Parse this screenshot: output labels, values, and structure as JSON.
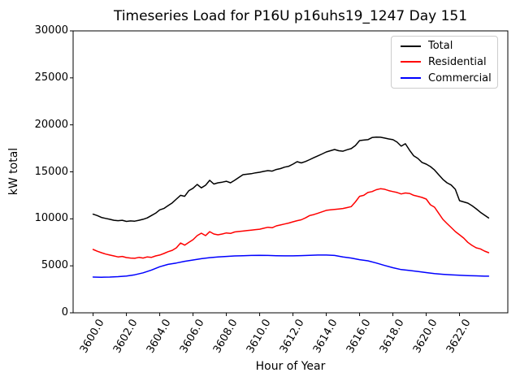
{
  "chart_data": {
    "type": "line",
    "title": "Timeseries Load for P16U p16uhs19_1247  Day 151",
    "xlabel": "Hour of Year",
    "ylabel": "kW total",
    "grid": false,
    "legend_position": "upper right",
    "x_tick_rotation_deg": 60,
    "xlim": [
      3598.8,
      3624.9
    ],
    "ylim": [
      0,
      30000
    ],
    "xticks": {
      "values": [
        3600,
        3602,
        3604,
        3606,
        3608,
        3610,
        3612,
        3614,
        3616,
        3618,
        3620,
        3622
      ],
      "labels": [
        "3600.0",
        "3602.0",
        "3604.0",
        "3606.0",
        "3608.0",
        "3610.0",
        "3612.0",
        "3614.0",
        "3616.0",
        "3618.0",
        "3620.0",
        "3622.0"
      ]
    },
    "yticks": {
      "values": [
        0,
        5000,
        10000,
        15000,
        20000,
        25000,
        30000
      ],
      "labels": [
        "0",
        "5000",
        "10000",
        "15000",
        "20000",
        "25000",
        "30000"
      ]
    },
    "series": [
      {
        "name": "Total",
        "color": "#000000",
        "points": [
          [
            3600,
            10500
          ],
          [
            3600.25,
            10350
          ],
          [
            3600.5,
            10150
          ],
          [
            3600.75,
            10050
          ],
          [
            3601,
            9950
          ],
          [
            3601.25,
            9850
          ],
          [
            3601.5,
            9800
          ],
          [
            3601.75,
            9850
          ],
          [
            3602,
            9730
          ],
          [
            3602.25,
            9780
          ],
          [
            3602.5,
            9750
          ],
          [
            3602.75,
            9850
          ],
          [
            3603,
            9950
          ],
          [
            3603.25,
            10100
          ],
          [
            3603.5,
            10350
          ],
          [
            3603.75,
            10600
          ],
          [
            3604,
            10950
          ],
          [
            3604.25,
            11100
          ],
          [
            3604.5,
            11400
          ],
          [
            3604.75,
            11700
          ],
          [
            3605,
            12100
          ],
          [
            3605.25,
            12500
          ],
          [
            3605.5,
            12400
          ],
          [
            3605.75,
            13000
          ],
          [
            3606,
            13250
          ],
          [
            3606.25,
            13660
          ],
          [
            3606.5,
            13300
          ],
          [
            3606.75,
            13570
          ],
          [
            3607,
            14100
          ],
          [
            3607.25,
            13700
          ],
          [
            3607.5,
            13830
          ],
          [
            3607.75,
            13900
          ],
          [
            3608,
            14000
          ],
          [
            3608.25,
            13830
          ],
          [
            3608.5,
            14100
          ],
          [
            3608.75,
            14400
          ],
          [
            3609,
            14700
          ],
          [
            3609.25,
            14750
          ],
          [
            3609.5,
            14800
          ],
          [
            3609.75,
            14900
          ],
          [
            3610,
            14960
          ],
          [
            3610.25,
            15050
          ],
          [
            3610.5,
            15130
          ],
          [
            3610.75,
            15080
          ],
          [
            3611,
            15250
          ],
          [
            3611.25,
            15350
          ],
          [
            3611.5,
            15500
          ],
          [
            3611.75,
            15600
          ],
          [
            3612,
            15820
          ],
          [
            3612.25,
            16080
          ],
          [
            3612.5,
            15950
          ],
          [
            3612.75,
            16100
          ],
          [
            3613,
            16300
          ],
          [
            3613.25,
            16500
          ],
          [
            3613.5,
            16700
          ],
          [
            3613.75,
            16900
          ],
          [
            3614,
            17120
          ],
          [
            3614.25,
            17250
          ],
          [
            3614.5,
            17380
          ],
          [
            3614.75,
            17250
          ],
          [
            3615,
            17200
          ],
          [
            3615.25,
            17350
          ],
          [
            3615.5,
            17470
          ],
          [
            3615.75,
            17800
          ],
          [
            3616,
            18330
          ],
          [
            3616.25,
            18380
          ],
          [
            3616.5,
            18420
          ],
          [
            3616.75,
            18650
          ],
          [
            3617,
            18700
          ],
          [
            3617.25,
            18680
          ],
          [
            3617.5,
            18600
          ],
          [
            3617.75,
            18500
          ],
          [
            3618,
            18420
          ],
          [
            3618.25,
            18160
          ],
          [
            3618.5,
            17730
          ],
          [
            3618.75,
            17990
          ],
          [
            3619,
            17300
          ],
          [
            3619.25,
            16700
          ],
          [
            3619.5,
            16425
          ],
          [
            3619.75,
            16000
          ],
          [
            3620,
            15820
          ],
          [
            3620.25,
            15560
          ],
          [
            3620.5,
            15200
          ],
          [
            3620.75,
            14700
          ],
          [
            3621,
            14200
          ],
          [
            3621.25,
            13830
          ],
          [
            3621.5,
            13600
          ],
          [
            3621.75,
            13140
          ],
          [
            3622,
            11930
          ],
          [
            3622.25,
            11800
          ],
          [
            3622.5,
            11670
          ],
          [
            3622.75,
            11400
          ],
          [
            3623,
            11070
          ],
          [
            3623.25,
            10700
          ],
          [
            3623.5,
            10400
          ],
          [
            3623.75,
            10100
          ]
        ]
      },
      {
        "name": "Residential",
        "color": "#ff0000",
        "points": [
          [
            3600,
            6740
          ],
          [
            3600.25,
            6550
          ],
          [
            3600.5,
            6400
          ],
          [
            3600.75,
            6250
          ],
          [
            3601,
            6150
          ],
          [
            3601.25,
            6050
          ],
          [
            3601.5,
            5950
          ],
          [
            3601.75,
            6000
          ],
          [
            3602,
            5880
          ],
          [
            3602.25,
            5830
          ],
          [
            3602.5,
            5800
          ],
          [
            3602.75,
            5900
          ],
          [
            3603,
            5830
          ],
          [
            3603.25,
            5950
          ],
          [
            3603.5,
            5900
          ],
          [
            3603.75,
            6050
          ],
          [
            3604,
            6150
          ],
          [
            3604.25,
            6310
          ],
          [
            3604.5,
            6500
          ],
          [
            3604.75,
            6650
          ],
          [
            3605,
            6920
          ],
          [
            3605.25,
            7430
          ],
          [
            3605.5,
            7200
          ],
          [
            3605.75,
            7500
          ],
          [
            3606,
            7780
          ],
          [
            3606.25,
            8210
          ],
          [
            3606.5,
            8470
          ],
          [
            3606.75,
            8210
          ],
          [
            3607,
            8640
          ],
          [
            3607.25,
            8385
          ],
          [
            3607.5,
            8300
          ],
          [
            3607.75,
            8385
          ],
          [
            3608,
            8500
          ],
          [
            3608.25,
            8450
          ],
          [
            3608.5,
            8600
          ],
          [
            3608.75,
            8650
          ],
          [
            3609,
            8700
          ],
          [
            3609.25,
            8750
          ],
          [
            3609.5,
            8800
          ],
          [
            3609.75,
            8850
          ],
          [
            3610,
            8900
          ],
          [
            3610.25,
            9000
          ],
          [
            3610.5,
            9100
          ],
          [
            3610.75,
            9050
          ],
          [
            3611,
            9250
          ],
          [
            3611.25,
            9350
          ],
          [
            3611.5,
            9450
          ],
          [
            3611.75,
            9550
          ],
          [
            3612,
            9680
          ],
          [
            3612.25,
            9800
          ],
          [
            3612.5,
            9900
          ],
          [
            3612.75,
            10100
          ],
          [
            3613,
            10350
          ],
          [
            3613.25,
            10450
          ],
          [
            3613.5,
            10600
          ],
          [
            3613.75,
            10750
          ],
          [
            3614,
            10900
          ],
          [
            3614.25,
            10950
          ],
          [
            3614.5,
            11000
          ],
          [
            3614.75,
            11050
          ],
          [
            3615,
            11100
          ],
          [
            3615.25,
            11200
          ],
          [
            3615.5,
            11300
          ],
          [
            3615.75,
            11800
          ],
          [
            3616,
            12400
          ],
          [
            3616.25,
            12500
          ],
          [
            3616.5,
            12800
          ],
          [
            3616.75,
            12900
          ],
          [
            3617,
            13100
          ],
          [
            3617.25,
            13200
          ],
          [
            3617.5,
            13150
          ],
          [
            3617.75,
            13000
          ],
          [
            3618,
            12900
          ],
          [
            3618.25,
            12800
          ],
          [
            3618.5,
            12650
          ],
          [
            3618.75,
            12750
          ],
          [
            3619,
            12700
          ],
          [
            3619.25,
            12500
          ],
          [
            3619.5,
            12400
          ],
          [
            3619.75,
            12280
          ],
          [
            3620,
            12100
          ],
          [
            3620.25,
            11500
          ],
          [
            3620.5,
            11240
          ],
          [
            3620.75,
            10600
          ],
          [
            3621,
            9940
          ],
          [
            3621.25,
            9500
          ],
          [
            3621.5,
            9080
          ],
          [
            3621.75,
            8645
          ],
          [
            3622,
            8300
          ],
          [
            3622.25,
            7950
          ],
          [
            3622.5,
            7500
          ],
          [
            3622.75,
            7175
          ],
          [
            3623,
            6915
          ],
          [
            3623.25,
            6800
          ],
          [
            3623.5,
            6570
          ],
          [
            3623.75,
            6400
          ]
        ]
      },
      {
        "name": "Commercial",
        "color": "#0000ff",
        "points": [
          [
            3600,
            3800
          ],
          [
            3600.5,
            3790
          ],
          [
            3601,
            3800
          ],
          [
            3601.5,
            3850
          ],
          [
            3602,
            3920
          ],
          [
            3602.5,
            4050
          ],
          [
            3603,
            4250
          ],
          [
            3603.5,
            4550
          ],
          [
            3604,
            4900
          ],
          [
            3604.5,
            5150
          ],
          [
            3605,
            5300
          ],
          [
            3605.5,
            5480
          ],
          [
            3606,
            5620
          ],
          [
            3606.5,
            5760
          ],
          [
            3607,
            5870
          ],
          [
            3607.5,
            5940
          ],
          [
            3608,
            6000
          ],
          [
            3608.5,
            6050
          ],
          [
            3609,
            6080
          ],
          [
            3609.5,
            6100
          ],
          [
            3610,
            6120
          ],
          [
            3610.5,
            6100
          ],
          [
            3611,
            6080
          ],
          [
            3611.5,
            6060
          ],
          [
            3612,
            6060
          ],
          [
            3612.5,
            6090
          ],
          [
            3613,
            6120
          ],
          [
            3613.5,
            6150
          ],
          [
            3614,
            6150
          ],
          [
            3614.5,
            6100
          ],
          [
            3615,
            5950
          ],
          [
            3615.5,
            5830
          ],
          [
            3616,
            5650
          ],
          [
            3616.5,
            5530
          ],
          [
            3617,
            5300
          ],
          [
            3617.5,
            5040
          ],
          [
            3618,
            4800
          ],
          [
            3618.5,
            4600
          ],
          [
            3619,
            4500
          ],
          [
            3619.5,
            4400
          ],
          [
            3620,
            4280
          ],
          [
            3620.5,
            4175
          ],
          [
            3621,
            4100
          ],
          [
            3621.5,
            4035
          ],
          [
            3622,
            3990
          ],
          [
            3622.5,
            3960
          ],
          [
            3623,
            3930
          ],
          [
            3623.5,
            3900
          ],
          [
            3623.75,
            3900
          ]
        ]
      }
    ]
  }
}
